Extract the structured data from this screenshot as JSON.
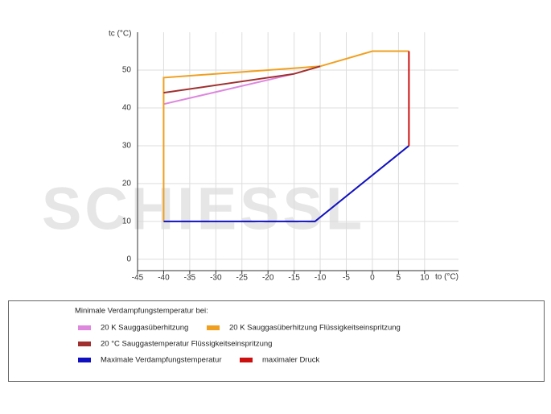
{
  "chart_data": {
    "type": "line",
    "y_label": "tc (°C)",
    "x_label": "to (°C)",
    "watermark": "SCHIESSL",
    "legend_title": "Minimale Verdampfungstemperatur bei:",
    "xlim": [
      -45,
      16.5
    ],
    "ylim": [
      -3,
      60
    ],
    "xticks": [
      -45,
      -40,
      -35,
      -30,
      -25,
      -20,
      -15,
      -10,
      -5,
      0,
      5,
      10
    ],
    "yticks": [
      0,
      10,
      20,
      30,
      40,
      50
    ],
    "grid": true,
    "series": [
      {
        "name": "20 K Sauggasüberhitzung",
        "color": "#dd88dd",
        "x": [
          -40,
          -15
        ],
        "values": [
          41,
          49
        ]
      },
      {
        "name": "20 K Sauggasüberhitzung Flüssigkeitseinspritzung",
        "color": "#f0a020",
        "x": [
          -40,
          -40,
          -10,
          0,
          7
        ],
        "values": [
          10,
          48,
          51,
          55,
          55
        ]
      },
      {
        "name": "20 °C Sauggastemperatur Flüssigkeitseinspritzung",
        "color": "#a03030",
        "x": [
          -40,
          -15,
          -10
        ],
        "values": [
          44,
          49,
          51
        ]
      },
      {
        "name": "Maximale Verdampfungstemperatur",
        "color": "#1010c0",
        "x": [
          -40,
          -11,
          7
        ],
        "values": [
          10,
          10,
          30
        ]
      },
      {
        "name": "maximaler Druck",
        "color": "#cc1010",
        "x": [
          7,
          7
        ],
        "values": [
          55,
          30
        ]
      }
    ]
  }
}
